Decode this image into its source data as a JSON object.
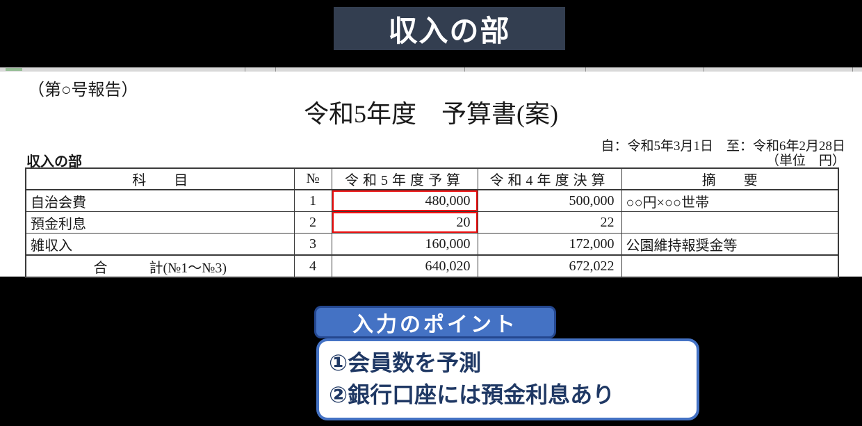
{
  "banner": {
    "title": "収入の部"
  },
  "document": {
    "report_label": "（第○号報告）",
    "title": "令和5年度　予算書(案)",
    "period": "自：令和5年3月1日　至：令和6年2月28日",
    "unit_label": "（単位　円）",
    "section_label": "収入の部"
  },
  "table": {
    "headers": [
      "科　　目",
      "№",
      "令和5年度予算",
      "令和4年度決算",
      "摘　　要"
    ],
    "rows": [
      {
        "item": "自治会費",
        "no": "1",
        "budget": "480,000",
        "settlement": "500,000",
        "note": "○○円×○○世帯",
        "highlight": true,
        "is_total": false
      },
      {
        "item": "預金利息",
        "no": "2",
        "budget": "20",
        "settlement": "22",
        "note": "",
        "highlight": true,
        "is_total": false
      },
      {
        "item": "雑収入",
        "no": "3",
        "budget": "160,000",
        "settlement": "172,000",
        "note": "公園維持報奨金等",
        "highlight": false,
        "is_total": false
      },
      {
        "item": "合　　　計(№1～№3)",
        "no": "4",
        "budget": "640,020",
        "settlement": "672,022",
        "note": "",
        "highlight": false,
        "is_total": true
      }
    ]
  },
  "callout": {
    "badge_label": "入力のポイント",
    "lines": [
      "①会員数を予測",
      "②銀行口座には預金利息あり"
    ]
  },
  "colors": {
    "banner_bg": "#333E50",
    "badge_blue": "#4472C4",
    "badge_border": "#24478F",
    "callout_text": "#1F3864",
    "highlight_red": "#EE1111",
    "sheet_strip": "#D9D9D9",
    "sheet_strip_green": "#96BD96"
  }
}
